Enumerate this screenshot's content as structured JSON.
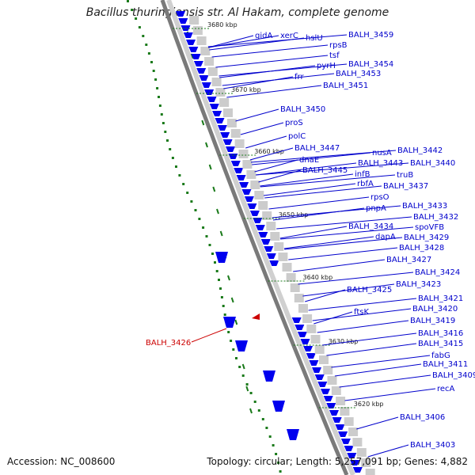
{
  "title": "Bacillus thuringiensis str. Al Hakam, complete genome",
  "footer": {
    "accession": "Accession: NC_008600",
    "summary": "Topology: circular; Length: 5,257,091 bp; Genes: 4,882"
  },
  "colors": {
    "gene_label": "#0000cc",
    "highlight": "#cc0000",
    "tick": "#1a7a1a",
    "backbone": "#7a7a7a",
    "arrow": "#0000ee"
  },
  "scale_ticks": [
    {
      "label": "3680 kbp",
      "pos": 3680
    },
    {
      "label": "3670 kbp",
      "pos": 3670
    },
    {
      "label": "3660 kbp",
      "pos": 3660
    },
    {
      "label": "3650 kbp",
      "pos": 3650
    },
    {
      "label": "3640 kbp",
      "pos": 3640
    },
    {
      "label": "3630 kbp",
      "pos": 3630
    },
    {
      "label": "3620 kbp",
      "pos": 3620
    }
  ],
  "highlighted_gene": "BALH_3426",
  "gene_labels": [
    "gidA",
    "xerC",
    "hslU",
    "BALH_3459",
    "rpsB",
    "tsf",
    "pyrH",
    "BALH_3454",
    "frr",
    "BALH_3453",
    "BALH_3451",
    "BALH_3450",
    "proS",
    "polC",
    "BALH_3447",
    "dnaE",
    "nusA",
    "BALH_3442",
    "BALH_3443",
    "BALH_3440",
    "BALH_3445",
    "infB",
    "truB",
    "rbfA",
    "BALH_3437",
    "rpsO",
    "pnpA",
    "BALH_3433",
    "BALH_3432",
    "BALH_3434",
    "spoVFB",
    "dapA",
    "BALH_3429",
    "BALH_3428",
    "BALH_3427",
    "BALH_3424",
    "BALH_3423",
    "BALH_3425",
    "BALH_3421",
    "BALH_3420",
    "ftsK",
    "BALH_3419",
    "BALH_3416",
    "BALH_3415",
    "fabG",
    "BALH_3411",
    "BALH_3409",
    "recA",
    "BALH_3406",
    "BALH_3403"
  ]
}
